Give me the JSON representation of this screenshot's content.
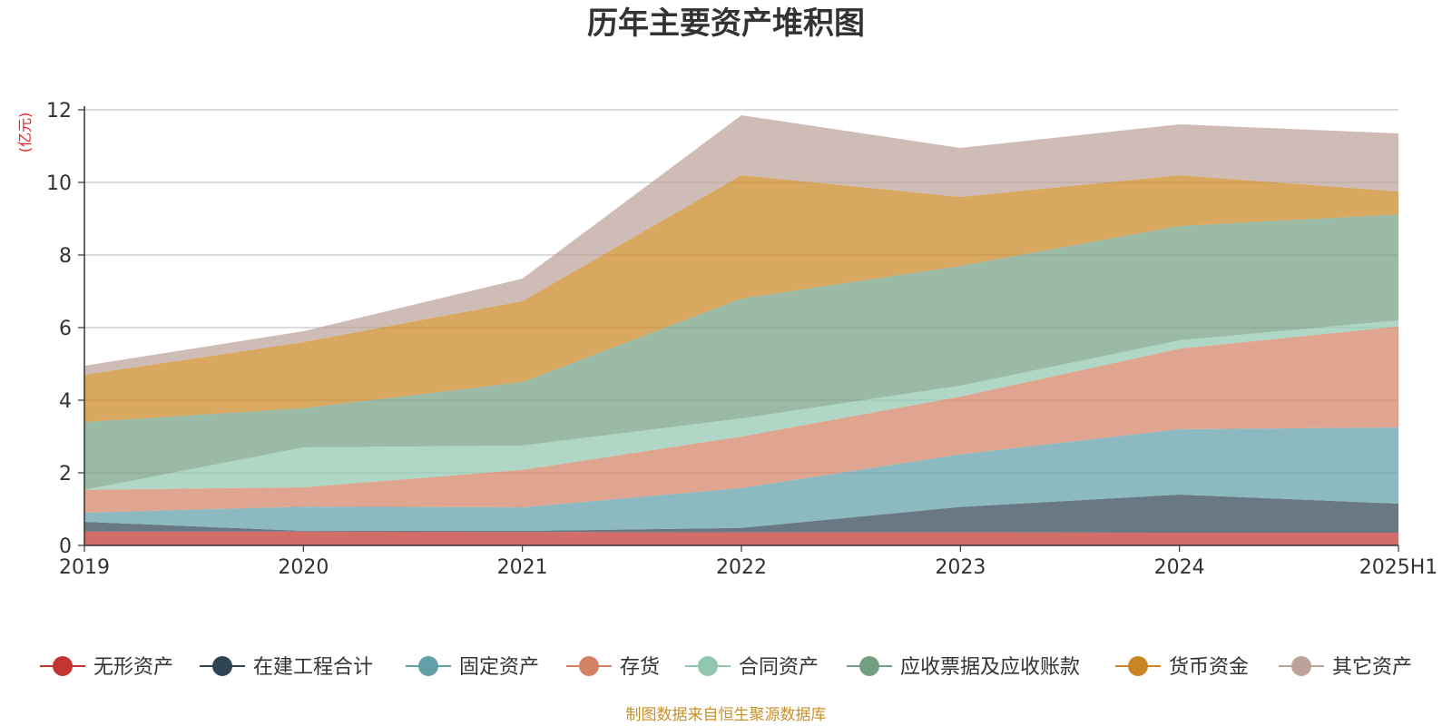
{
  "chart_data": {
    "type": "area",
    "stacked": true,
    "title": "历年主要资产堆积图",
    "ylabel": "(亿元)",
    "xlabel": "",
    "x": [
      "2019",
      "2020",
      "2021",
      "2022",
      "2023",
      "2024",
      "2025H1"
    ],
    "ylim": [
      0,
      12
    ],
    "yticks": [
      0,
      2,
      4,
      6,
      8,
      10,
      12
    ],
    "grid": true,
    "legend_position": "bottom",
    "series": [
      {
        "name": "无形资产",
        "color": "#c23531",
        "values": [
          0.38,
          0.38,
          0.37,
          0.36,
          0.36,
          0.35,
          0.35
        ]
      },
      {
        "name": "在建工程合计",
        "color": "#2f4554",
        "values": [
          0.27,
          0.02,
          0.03,
          0.12,
          0.7,
          1.05,
          0.8
        ]
      },
      {
        "name": "固定资产",
        "color": "#61a0a8",
        "values": [
          0.25,
          0.67,
          0.65,
          1.1,
          1.45,
          1.8,
          2.1
        ]
      },
      {
        "name": "存货",
        "color": "#d48265",
        "values": [
          0.63,
          0.53,
          1.03,
          1.42,
          1.59,
          2.22,
          2.78
        ]
      },
      {
        "name": "合同资产",
        "color": "#91c7ae",
        "values": [
          0.0,
          1.1,
          0.67,
          0.5,
          0.3,
          0.23,
          0.17
        ]
      },
      {
        "name": "应收票据及应收账款",
        "color": "#749f83",
        "values": [
          1.87,
          1.08,
          1.75,
          3.3,
          3.3,
          3.15,
          2.92
        ]
      },
      {
        "name": "货币资金",
        "color": "#ca8622",
        "values": [
          1.3,
          1.82,
          2.23,
          3.4,
          1.9,
          1.4,
          0.63
        ]
      },
      {
        "name": "其它资产",
        "color": "#bda29a",
        "values": [
          0.25,
          0.3,
          0.62,
          1.65,
          1.35,
          1.4,
          1.6
        ]
      }
    ]
  },
  "footer": {
    "source": "制图数据来自恒生聚源数据库"
  }
}
